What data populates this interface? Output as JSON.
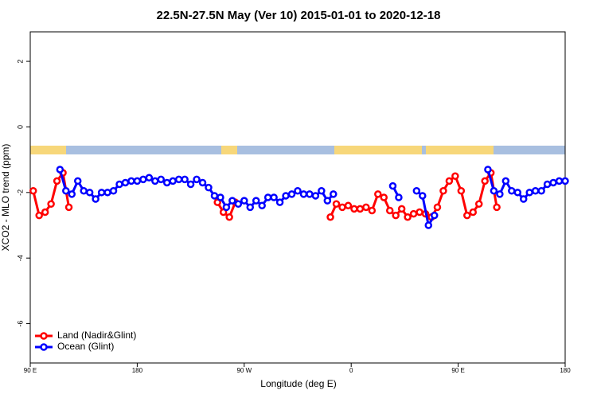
{
  "chart_data": {
    "type": "line",
    "title": "22.5N-27.5N May (Ver 10)   2015-01-01 to 2020-12-18",
    "x_label": "Longitude (deg E)",
    "y_label": "XCO2 - MLO trend (ppm)",
    "xlim": [
      90,
      540
    ],
    "ylim": [
      -7.2,
      2.9
    ],
    "xticks": [
      {
        "value": 90,
        "label": "90 E"
      },
      180,
      {
        "value": 270,
        "label": "90 W"
      },
      {
        "value": 360,
        "label": "0"
      },
      {
        "value": 450,
        "label": "90 E"
      },
      {
        "value": 540,
        "label": "180"
      }
    ],
    "yticks": [
      -6,
      -4,
      -2,
      0,
      2
    ],
    "legend": "bottom-left",
    "series": [
      {
        "name": "Land (Nadir&Glint)",
        "color": "#ff0000",
        "x": [
          92.5,
          97.5,
          102.5,
          107.5,
          112.5,
          117.5,
          122.5,
          127.5,
          247.5,
          252.5,
          257.5,
          262.5,
          267.5,
          342.5,
          347.5,
          352.5,
          357.5,
          362.5,
          367.5,
          372.5,
          377.5,
          382.5,
          387.5,
          392.5,
          397.5,
          402.5,
          407.5,
          412.5,
          417.5,
          422.5,
          427.5,
          432.5,
          437.5,
          442.5,
          447.5,
          452.5,
          457.5,
          462.5,
          467.5,
          472.5,
          477.5,
          482.5
        ],
        "values": [
          -1.95,
          -2.7,
          -2.6,
          -2.35,
          -1.65,
          -1.4,
          -2.45,
          null,
          -2.3,
          -2.6,
          -2.75,
          -2.3,
          null,
          -2.75,
          -2.35,
          -2.45,
          -2.4,
          -2.5,
          -2.5,
          -2.45,
          -2.55,
          -2.05,
          -2.15,
          -2.55,
          -2.7,
          -2.5,
          -2.75,
          -2.65,
          -2.6,
          -2.65,
          -2.75,
          -2.45,
          -1.95,
          -1.65,
          -1.5,
          -1.95,
          -2.7,
          -2.6,
          -2.35,
          -1.65,
          -1.4,
          -2.45
        ]
      },
      {
        "name": "Ocean (Glint)",
        "color": "#0000ff",
        "x": [
          115,
          120,
          125,
          130,
          135,
          140,
          145,
          150,
          155,
          160,
          165,
          170,
          175,
          180,
          185,
          190,
          195,
          200,
          205,
          210,
          215,
          220,
          225,
          230,
          235,
          240,
          245,
          250,
          255,
          260,
          265,
          270,
          275,
          280,
          285,
          290,
          295,
          300,
          305,
          310,
          315,
          320,
          325,
          330,
          335,
          340,
          345,
          350,
          395,
          400,
          405,
          415,
          420,
          425,
          430,
          435,
          475,
          480,
          485,
          490,
          495,
          500,
          505,
          510,
          515,
          520,
          525,
          530,
          535,
          540
        ],
        "values": [
          -1.3,
          -1.95,
          -2.05,
          -1.65,
          -1.95,
          -2.0,
          -2.2,
          -2.0,
          -2.0,
          -1.95,
          -1.75,
          -1.7,
          -1.65,
          -1.65,
          -1.6,
          -1.55,
          -1.65,
          -1.6,
          -1.7,
          -1.65,
          -1.6,
          -1.6,
          -1.75,
          -1.6,
          -1.7,
          -1.85,
          -2.1,
          -2.15,
          -2.45,
          -2.25,
          -2.35,
          -2.25,
          -2.45,
          -2.25,
          -2.4,
          -2.15,
          -2.15,
          -2.3,
          -2.1,
          -2.05,
          -1.95,
          -2.05,
          -2.05,
          -2.1,
          -1.95,
          -2.25,
          -2.05,
          null,
          -1.8,
          -2.15,
          null,
          -1.95,
          -2.1,
          -3.0,
          -2.7,
          null,
          -1.3,
          -1.95,
          -2.05,
          -1.65,
          -1.95,
          -2.0,
          -2.2,
          -2.0,
          -1.95,
          -1.95,
          -1.75,
          -1.7,
          -1.65,
          -1.65
        ]
      }
    ]
  }
}
